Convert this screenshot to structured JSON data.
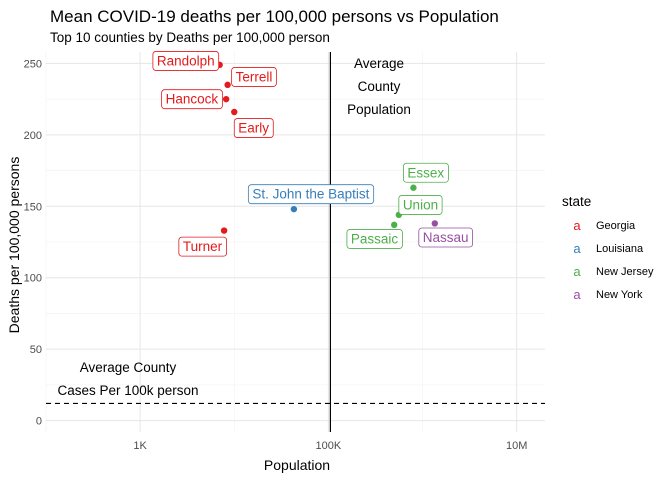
{
  "chart_data": {
    "type": "scatter",
    "title": "Mean COVID-19 deaths per 100,000 persons vs Population",
    "subtitle": "Top 10 counties by Deaths per 100,000 person",
    "xlabel": "Population",
    "ylabel": "Deaths per 100,000 persons",
    "x_scale": "log10",
    "xlim": [
      100,
      20000000
    ],
    "ylim": [
      -8,
      258
    ],
    "x_ticks": [
      {
        "value": 1000,
        "label": "1K"
      },
      {
        "value": 100000,
        "label": "100K"
      },
      {
        "value": 10000000,
        "label": "10M"
      }
    ],
    "y_ticks": [
      {
        "value": 0,
        "label": "0"
      },
      {
        "value": 50,
        "label": "50"
      },
      {
        "value": 100,
        "label": "100"
      },
      {
        "value": 150,
        "label": "150"
      },
      {
        "value": 200,
        "label": "200"
      },
      {
        "value": 250,
        "label": "250"
      }
    ],
    "grid": true,
    "legend": {
      "title": "state",
      "position": "right",
      "entries": [
        {
          "name": "Georgia",
          "color": "#E41A1C"
        },
        {
          "name": "Louisiana",
          "color": "#377EB8"
        },
        {
          "name": "New Jersey",
          "color": "#4DAF4A"
        },
        {
          "name": "New York",
          "color": "#984EA3"
        }
      ]
    },
    "points": [
      {
        "label": "Randolph",
        "state": "Georgia",
        "x": 7000,
        "y": 249
      },
      {
        "label": "Terrell",
        "state": "Georgia",
        "x": 8500,
        "y": 235
      },
      {
        "label": "Hancock",
        "state": "Georgia",
        "x": 8200,
        "y": 225
      },
      {
        "label": "Early",
        "state": "Georgia",
        "x": 10000,
        "y": 216
      },
      {
        "label": "Turner",
        "state": "Georgia",
        "x": 7800,
        "y": 133
      },
      {
        "label": "St. John the Baptist",
        "state": "Louisiana",
        "x": 43000,
        "y": 148
      },
      {
        "label": "Essex",
        "state": "New Jersey",
        "x": 800000,
        "y": 163
      },
      {
        "label": "Union",
        "state": "New Jersey",
        "x": 560000,
        "y": 144
      },
      {
        "label": "Passaic",
        "state": "New Jersey",
        "x": 500000,
        "y": 137
      },
      {
        "label": "Nassau",
        "state": "New York",
        "x": 1350000,
        "y": 138
      }
    ],
    "reference_lines": [
      {
        "orientation": "vertical",
        "x": 105000,
        "style": "solid",
        "label_lines": [
          "Average",
          "County",
          "Population"
        ]
      },
      {
        "orientation": "horizontal",
        "y": 12,
        "style": "dashed",
        "label_lines": [
          "Average County",
          "Cases Per 100k person"
        ]
      }
    ]
  }
}
